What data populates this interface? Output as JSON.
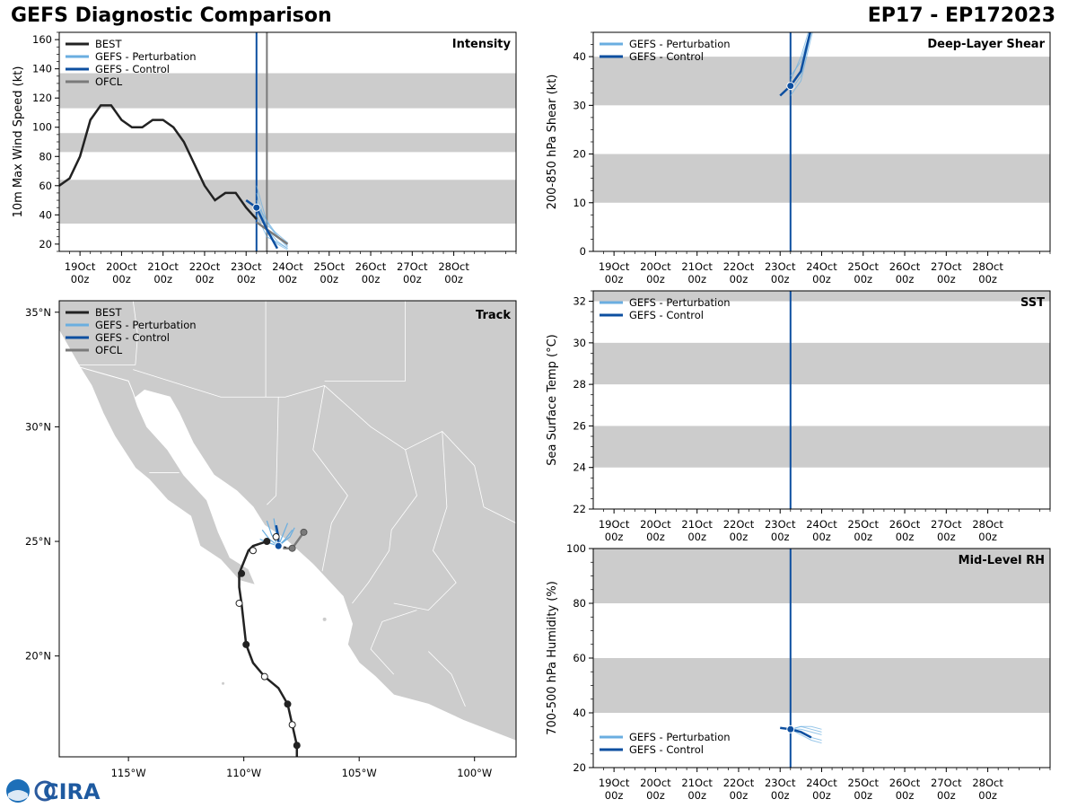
{
  "header": {
    "title": "GEFS Diagnostic Comparison",
    "storm_id": "EP17 - EP172023"
  },
  "logo": {
    "label": "CIRA"
  },
  "colors": {
    "best": "#222222",
    "perturbation": "#6aaee0",
    "control": "#0d4fa0",
    "ofcl": "#7a7a7a",
    "band": "#cccccc",
    "land": "#cccccc"
  },
  "time_axis": {
    "ticks": [
      {
        "day": "19Oct",
        "hour": "00z"
      },
      {
        "day": "20Oct",
        "hour": "00z"
      },
      {
        "day": "21Oct",
        "hour": "00z"
      },
      {
        "day": "22Oct",
        "hour": "00z"
      },
      {
        "day": "23Oct",
        "hour": "00z"
      },
      {
        "day": "24Oct",
        "hour": "00z"
      },
      {
        "day": "25Oct",
        "hour": "00z"
      },
      {
        "day": "26Oct",
        "hour": "00z"
      },
      {
        "day": "27Oct",
        "hour": "00z"
      },
      {
        "day": "28Oct",
        "hour": "00z"
      }
    ],
    "init_day": 4.25,
    "ofcl_day": 4.5
  },
  "chart_data": [
    {
      "id": "intensity",
      "type": "line",
      "title": "Intensity",
      "ylabel": "10m Max Wind Speed (kt)",
      "ylim": [
        15,
        165
      ],
      "xlim": [
        -0.5,
        10.5
      ],
      "yticks": [
        20,
        40,
        60,
        80,
        100,
        120,
        140,
        160
      ],
      "bands": [
        [
          34,
          64
        ],
        [
          83,
          96
        ],
        [
          113,
          137
        ]
      ],
      "legend": [
        "BEST",
        "GEFS - Perturbation",
        "GEFS - Control",
        "OFCL"
      ],
      "series": [
        {
          "name": "BEST",
          "x": [
            -0.5,
            -0.25,
            0,
            0.25,
            0.5,
            0.75,
            1,
            1.25,
            1.5,
            1.75,
            2,
            2.25,
            2.5,
            2.75,
            3,
            3.25,
            3.5,
            3.75,
            4,
            4.25
          ],
          "y": [
            60,
            65,
            80,
            105,
            115,
            115,
            105,
            100,
            100,
            105,
            105,
            100,
            90,
            75,
            60,
            50,
            55,
            55,
            45,
            37
          ]
        },
        {
          "name": "GEFS - Control",
          "x": [
            4,
            4.25,
            4.5,
            4.75
          ],
          "y": [
            50,
            45,
            30,
            17
          ]
        },
        {
          "name": "OFCL",
          "x": [
            4.25,
            4.5,
            4.75,
            5.0
          ],
          "y": [
            35,
            30,
            25,
            20
          ]
        },
        {
          "name": "GEFS - Perturbation",
          "members": [
            {
              "x": [
                4.25,
                4.5,
                4.75,
                5.0
              ],
              "y": [
                60,
                35,
                25,
                18
              ]
            },
            {
              "x": [
                4.25,
                4.5,
                4.75,
                5.0
              ],
              "y": [
                55,
                30,
                22,
                17
              ]
            },
            {
              "x": [
                4.25,
                4.5,
                4.75,
                5.0
              ],
              "y": [
                50,
                28,
                20,
                16
              ]
            },
            {
              "x": [
                4.25,
                4.5,
                4.75,
                5.0
              ],
              "y": [
                45,
                33,
                27,
                21
              ]
            },
            {
              "x": [
                4.25,
                4.5,
                4.75,
                5.0
              ],
              "y": [
                40,
                25,
                21,
                17
              ]
            },
            {
              "x": [
                4.25,
                4.5,
                4.75,
                5.0
              ],
              "y": [
                48,
                36,
                26,
                19
              ]
            }
          ]
        }
      ],
      "markers": [
        {
          "x": 4.25,
          "y": 45,
          "series": "GEFS - Control"
        }
      ]
    },
    {
      "id": "shear",
      "type": "line",
      "title": "Deep-Layer Shear",
      "ylabel": "200-850 hPa Shear (kt)",
      "ylim": [
        0,
        45
      ],
      "xlim": [
        -0.5,
        10.5
      ],
      "yticks": [
        0,
        10,
        20,
        30,
        40
      ],
      "bands": [
        [
          10,
          20
        ],
        [
          30,
          40
        ]
      ],
      "legend": [
        "GEFS - Perturbation",
        "GEFS - Control"
      ],
      "series": [
        {
          "name": "GEFS - Control",
          "x": [
            4.0,
            4.25,
            4.5,
            4.75,
            4.9
          ],
          "y": [
            32,
            34,
            37,
            46,
            50
          ]
        },
        {
          "name": "GEFS - Perturbation",
          "members": [
            {
              "x": [
                4.25,
                4.5,
                4.75,
                4.9
              ],
              "y": [
                35,
                40,
                47,
                52
              ]
            },
            {
              "x": [
                4.25,
                4.5,
                4.75,
                4.9
              ],
              "y": [
                33,
                36,
                45,
                50
              ]
            },
            {
              "x": [
                4.25,
                4.5,
                4.75,
                4.9
              ],
              "y": [
                36,
                39,
                46,
                51
              ]
            },
            {
              "x": [
                4.25,
                4.5,
                4.75,
                4.9
              ],
              "y": [
                32,
                35,
                44,
                49
              ]
            }
          ]
        }
      ],
      "markers": [
        {
          "x": 4.25,
          "y": 34,
          "series": "GEFS - Control"
        }
      ]
    },
    {
      "id": "sst",
      "type": "line",
      "title": "SST",
      "ylabel": "Sea Surface Temp (°C)",
      "ylim": [
        22,
        32.5
      ],
      "xlim": [
        -0.5,
        10.5
      ],
      "yticks": [
        22,
        24,
        26,
        28,
        30,
        32
      ],
      "bands": [
        [
          24,
          26
        ],
        [
          28,
          30
        ],
        [
          32,
          32.5
        ]
      ],
      "legend": [
        "GEFS - Perturbation",
        "GEFS - Control"
      ],
      "series": [],
      "markers": []
    },
    {
      "id": "rh",
      "type": "line",
      "title": "Mid-Level RH",
      "ylabel": "700-500 hPa Humidity (%)",
      "ylim": [
        20,
        100
      ],
      "xlim": [
        -0.5,
        10.5
      ],
      "yticks": [
        20,
        40,
        60,
        80,
        100
      ],
      "bands": [
        [
          40,
          60
        ],
        [
          80,
          100
        ]
      ],
      "legend": [
        "GEFS - Perturbation",
        "GEFS - Control"
      ],
      "series": [
        {
          "name": "GEFS - Control",
          "x": [
            4.0,
            4.25,
            4.5,
            4.75
          ],
          "y": [
            34.5,
            34,
            33,
            31
          ]
        },
        {
          "name": "GEFS - Perturbation",
          "members": [
            {
              "x": [
                4.25,
                4.5,
                4.75,
                5.0
              ],
              "y": [
                34,
                35,
                34,
                33
              ]
            },
            {
              "x": [
                4.25,
                4.5,
                4.75,
                5.0
              ],
              "y": [
                34,
                33,
                31,
                30
              ]
            },
            {
              "x": [
                4.25,
                4.5,
                4.75,
                5.0
              ],
              "y": [
                34,
                32,
                30,
                29
              ]
            },
            {
              "x": [
                4.25,
                4.5,
                4.75,
                5.0
              ],
              "y": [
                34,
                34,
                33,
                32
              ]
            },
            {
              "x": [
                4.25,
                4.5,
                4.75,
                5.0
              ],
              "y": [
                34,
                35,
                35,
                34
              ]
            }
          ]
        }
      ],
      "markers": [
        {
          "x": 4.25,
          "y": 34,
          "series": "GEFS - Control"
        }
      ]
    },
    {
      "id": "track",
      "type": "scatter",
      "title": "Track",
      "xlim": [
        -118,
        -98.2
      ],
      "ylim": [
        15.6,
        35.5
      ],
      "xticks": [
        {
          "v": -115,
          "label": "115°W"
        },
        {
          "v": -110,
          "label": "110°W"
        },
        {
          "v": -105,
          "label": "105°W"
        },
        {
          "v": -100,
          "label": "100°W"
        }
      ],
      "yticks": [
        {
          "v": 20,
          "label": "20°N"
        },
        {
          "v": 25,
          "label": "25°N"
        },
        {
          "v": 30,
          "label": "30°N"
        },
        {
          "v": 35,
          "label": "35°N"
        }
      ],
      "legend": [
        "BEST",
        "GEFS - Perturbation",
        "GEFS - Control",
        "OFCL"
      ],
      "best_track": {
        "lon": [
          -107.7,
          -107.7,
          -107.9,
          -108.1,
          -108.5,
          -109.1,
          -109.6,
          -109.9,
          -110.0,
          -110.1,
          -110.2,
          -110.2,
          -110.0,
          -109.8,
          -109.6,
          -109.3,
          -109.0
        ],
        "lat": [
          15.5,
          16.1,
          17.0,
          17.9,
          18.6,
          19.1,
          19.7,
          20.5,
          21.4,
          22.3,
          23.0,
          23.6,
          24.1,
          24.6,
          24.8,
          24.9,
          25.0
        ]
      },
      "best_points": [
        {
          "lon": -107.7,
          "lat": 16.1,
          "open": false
        },
        {
          "lon": -107.9,
          "lat": 17.0,
          "open": true
        },
        {
          "lon": -108.1,
          "lat": 17.9,
          "open": false
        },
        {
          "lon": -109.1,
          "lat": 19.1,
          "open": true
        },
        {
          "lon": -109.9,
          "lat": 20.5,
          "open": false
        },
        {
          "lon": -110.2,
          "lat": 22.3,
          "open": true
        },
        {
          "lon": -110.1,
          "lat": 23.6,
          "open": false
        },
        {
          "lon": -109.6,
          "lat": 24.6,
          "open": true
        },
        {
          "lon": -109.0,
          "lat": 25.0,
          "open": false
        }
      ],
      "ofcl_track": {
        "lon": [
          -108.3,
          -107.9,
          -107.4
        ],
        "lat": [
          24.7,
          24.7,
          25.4
        ]
      },
      "ofcl_points": [
        {
          "lon": -107.9,
          "lat": 24.7,
          "open": false
        },
        {
          "lon": -107.4,
          "lat": 25.4,
          "open": false
        }
      ],
      "control_track": {
        "lon": [
          -108.5,
          -108.5,
          -108.6
        ],
        "lat": [
          24.8,
          25.2,
          25.7
        ]
      },
      "control_point": {
        "lon": -108.5,
        "lat": 24.8
      },
      "open_circle": {
        "lon": -108.6,
        "lat": 25.2
      },
      "perturbation_tracks": [
        {
          "lon": [
            -108.5,
            -108.8,
            -109.0
          ],
          "lat": [
            24.8,
            25.3,
            25.9
          ]
        },
        {
          "lon": [
            -108.5,
            -108.3,
            -108.1
          ],
          "lat": [
            24.8,
            25.3,
            25.8
          ]
        },
        {
          "lon": [
            -108.5,
            -108.9,
            -109.2
          ],
          "lat": [
            24.8,
            25.1,
            25.5
          ]
        },
        {
          "lon": [
            -108.5,
            -108.2,
            -107.9
          ],
          "lat": [
            24.8,
            25.1,
            25.5
          ]
        },
        {
          "lon": [
            -108.5,
            -108.6,
            -108.7
          ],
          "lat": [
            24.8,
            25.4,
            26.0
          ]
        },
        {
          "lon": [
            -108.5,
            -108.0,
            -107.8
          ],
          "lat": [
            24.8,
            25.2,
            25.6
          ]
        },
        {
          "lon": [
            -108.5,
            -109.1,
            -109.3
          ],
          "lat": [
            24.8,
            25.0,
            25.1
          ]
        }
      ]
    }
  ]
}
